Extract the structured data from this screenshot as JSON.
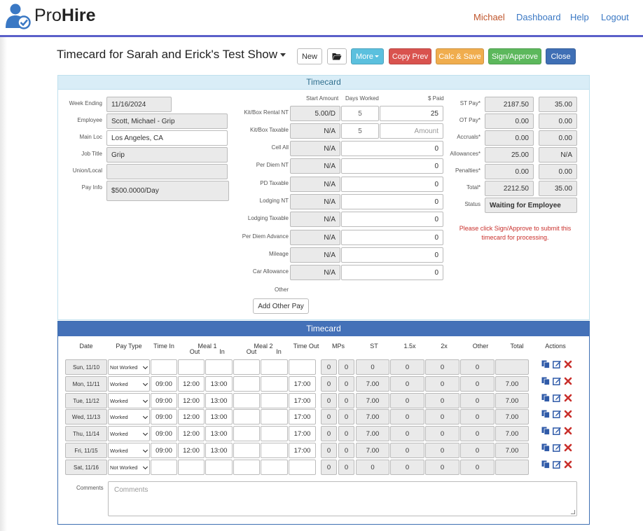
{
  "brand": {
    "part1": "Pro",
    "part2": "Hire"
  },
  "nav": {
    "user": "Michael",
    "dashboard": "Dashboard",
    "help": "Help",
    "logout": "Logout"
  },
  "page_title": "Timecard for Sarah and Erick's Test Show",
  "toolbar": {
    "new": "New",
    "more": "More",
    "copy_prev": "Copy Prev",
    "calc_save": "Calc & Save",
    "sign_approve": "Sign/Approve",
    "close": "Close"
  },
  "colors": {
    "accent": "#5b60c9",
    "more": "#5bc0de",
    "copy_prev": "#d9534f",
    "calc_save": "#f0ad4e",
    "sign_approve": "#5cb85c",
    "close": "#3f6fb5"
  },
  "section1": {
    "title": "Timecard",
    "info": {
      "week_ending": {
        "label": "Week Ending",
        "value": "11/16/2024"
      },
      "employee": {
        "label": "Employee",
        "value": "Scott, Michael - Grip"
      },
      "main_loc": {
        "label": "Main Loc",
        "value": "Los Angeles, CA"
      },
      "job_title": {
        "label": "Job Title",
        "value": "Grip"
      },
      "union_local": {
        "label": "Union/Local",
        "value": ""
      },
      "pay_info": {
        "label": "Pay Info",
        "value": "$500.0000/Day"
      }
    },
    "expenses_headers": {
      "start_amount": "Start Amount",
      "days_worked": "Days Worked",
      "paid": "$ Paid"
    },
    "expenses": [
      {
        "label": "Kit/Box Rental NT",
        "start": "5.00/D",
        "days": "5",
        "paid": "25"
      },
      {
        "label": "Kit/Box Taxable",
        "start": "N/A",
        "days": "5",
        "paid_placeholder": "Amount"
      },
      {
        "label": "Cell All",
        "start": "N/A",
        "paid": "0"
      },
      {
        "label": "Per Diem NT",
        "start": "N/A",
        "paid": "0"
      },
      {
        "label": "PD Taxable",
        "start": "N/A",
        "paid": "0"
      },
      {
        "label": "Lodging NT",
        "start": "N/A",
        "paid": "0"
      },
      {
        "label": "Lodging Taxable",
        "start": "N/A",
        "paid": "0"
      },
      {
        "label": "Per Diem Advance",
        "start": "N/A",
        "paid": "0"
      },
      {
        "label": "Mileage",
        "start": "N/A",
        "paid": "0"
      },
      {
        "label": "Car Allowance",
        "start": "N/A",
        "paid": "0"
      }
    ],
    "other_label": "Other",
    "add_other_pay": "Add Other Pay",
    "totals": [
      {
        "label": "ST Pay*",
        "v1": "2187.50",
        "v2": "35.00"
      },
      {
        "label": "OT Pay*",
        "v1": "0.00",
        "v2": "0.00"
      },
      {
        "label": "Accruals*",
        "v1": "0.00",
        "v2": "0.00"
      },
      {
        "label": "Allowances*",
        "v1": "25.00",
        "v2": "N/A"
      },
      {
        "label": "Penalties*",
        "v1": "0.00",
        "v2": "0.00"
      },
      {
        "label": "Total*",
        "v1": "2212.50",
        "v2": "35.00"
      }
    ],
    "status": {
      "label": "Status",
      "value": "Waiting for Employee"
    },
    "message": "Please click Sign/Approve to submit this timecard for processing."
  },
  "section2": {
    "title": "Timecard",
    "headers": {
      "date": "Date",
      "pay_type": "Pay Type",
      "time_in": "Time In",
      "meal1": "Meal 1",
      "meal2": "Meal 2",
      "out": "Out",
      "in": "In",
      "time_out": "Time Out",
      "mps": "MPs",
      "st": "ST",
      "x15": "1.5x",
      "x2": "2x",
      "other": "Other",
      "total": "Total",
      "actions": "Actions"
    },
    "rows": [
      {
        "date": "Sun, 11/10",
        "pay_type": "Not Worked",
        "time_in": "",
        "m1_out": "",
        "m1_in": "",
        "m2_out": "",
        "m2_in": "",
        "time_out": "",
        "mp1": "0",
        "mp2": "0",
        "st": "0",
        "x15": "0",
        "x2": "0",
        "other": "0",
        "total": ""
      },
      {
        "date": "Mon, 11/11",
        "pay_type": "Worked",
        "time_in": "09:00",
        "m1_out": "12:00",
        "m1_in": "13:00",
        "m2_out": "",
        "m2_in": "",
        "time_out": "17:00",
        "mp1": "0",
        "mp2": "0",
        "st": "7.00",
        "x15": "0",
        "x2": "0",
        "other": "0",
        "total": "7.00"
      },
      {
        "date": "Tue, 11/12",
        "pay_type": "Worked",
        "time_in": "09:00",
        "m1_out": "12:00",
        "m1_in": "13:00",
        "m2_out": "",
        "m2_in": "",
        "time_out": "17:00",
        "mp1": "0",
        "mp2": "0",
        "st": "7.00",
        "x15": "0",
        "x2": "0",
        "other": "0",
        "total": "7.00"
      },
      {
        "date": "Wed, 11/13",
        "pay_type": "Worked",
        "time_in": "09:00",
        "m1_out": "12:00",
        "m1_in": "13:00",
        "m2_out": "",
        "m2_in": "",
        "time_out": "17:00",
        "mp1": "0",
        "mp2": "0",
        "st": "7.00",
        "x15": "0",
        "x2": "0",
        "other": "0",
        "total": "7.00"
      },
      {
        "date": "Thu, 11/14",
        "pay_type": "Worked",
        "time_in": "09:00",
        "m1_out": "12:00",
        "m1_in": "13:00",
        "m2_out": "",
        "m2_in": "",
        "time_out": "17:00",
        "mp1": "0",
        "mp2": "0",
        "st": "7.00",
        "x15": "0",
        "x2": "0",
        "other": "0",
        "total": "7.00"
      },
      {
        "date": "Fri, 11/15",
        "pay_type": "Worked",
        "time_in": "09:00",
        "m1_out": "12:00",
        "m1_in": "13:00",
        "m2_out": "",
        "m2_in": "",
        "time_out": "17:00",
        "mp1": "0",
        "mp2": "0",
        "st": "7.00",
        "x15": "0",
        "x2": "0",
        "other": "0",
        "total": "7.00"
      },
      {
        "date": "Sat, 11/16",
        "pay_type": "Not Worked",
        "time_in": "",
        "m1_out": "",
        "m1_in": "",
        "m2_out": "",
        "m2_in": "",
        "time_out": "",
        "mp1": "0",
        "mp2": "0",
        "st": "0",
        "x15": "0",
        "x2": "0",
        "other": "0",
        "total": ""
      }
    ],
    "comments_label": "Comments",
    "comments_placeholder": "Comments"
  }
}
